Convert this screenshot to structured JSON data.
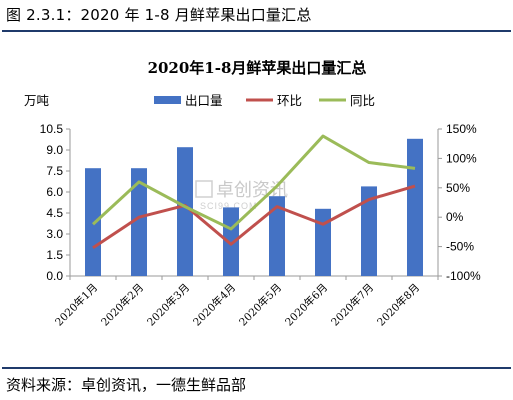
{
  "caption": "图 2.3.1：2020 年 1-8 月鲜苹果出口量汇总",
  "source": "资料来源：卓创资讯，一德生鲜品部",
  "watermark": "卓创资讯",
  "watermark_sub": "SCI99.COM",
  "colors": {
    "bar": "#4472c4",
    "mom": "#c0504d",
    "yoy": "#9bbb59",
    "rule": "#1f3a6b"
  },
  "chart_data": {
    "type": "bar",
    "title": "2020年1-8月鲜苹果出口量汇总",
    "ylabel": "万吨",
    "categories": [
      "2020年1月",
      "2020年2月",
      "2020年3月",
      "2020年4月",
      "2020年5月",
      "2020年6月",
      "2020年7月",
      "2020年8月"
    ],
    "left_axis": {
      "ylim": [
        0,
        10.5
      ],
      "ticks": [
        "0.0",
        "1.5",
        "3.0",
        "4.5",
        "6.0",
        "7.5",
        "9.0",
        "10.5"
      ],
      "tick_values": [
        0,
        1.5,
        3,
        4.5,
        6,
        7.5,
        9,
        10.5
      ]
    },
    "right_axis": {
      "ylim": [
        -100,
        150
      ],
      "ticks": [
        "-100%",
        "-50%",
        "0%",
        "50%",
        "100%",
        "150%"
      ],
      "tick_values": [
        -100,
        -50,
        0,
        50,
        100,
        150
      ]
    },
    "series": [
      {
        "name": "出口量",
        "kind": "bar",
        "axis": "left",
        "values": [
          7.7,
          7.7,
          9.2,
          4.9,
          5.7,
          4.8,
          6.4,
          9.8
        ]
      },
      {
        "name": "环比",
        "kind": "line",
        "axis": "right",
        "values": [
          -52,
          0,
          20,
          -46,
          18,
          -12,
          30,
          53
        ]
      },
      {
        "name": "同比",
        "kind": "line",
        "axis": "right",
        "values": [
          -12,
          60,
          18,
          -20,
          53,
          138,
          93,
          83
        ]
      }
    ],
    "legend": "top-center",
    "grid": false
  }
}
